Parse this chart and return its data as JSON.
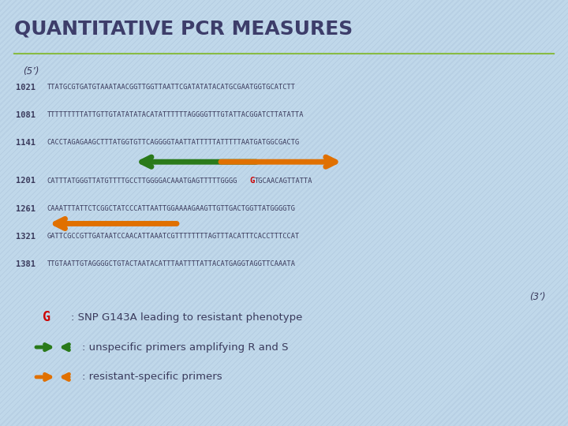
{
  "title": "QUANTITATIVE PCR MEASURES",
  "title_color": "#3d3d6a",
  "bg_color": "#b8cfe0",
  "bg_color2": "#d0e4f0",
  "five_prime_label": "(5’)",
  "three_prime_label": "(3’)",
  "seq_lines": [
    {
      "pos": "1021",
      "seq": "TTATGCGTGATGTAAATAACGGTTGGTTAATTCGATATATACATGCGAATGGTGCATCTT"
    },
    {
      "pos": "1081",
      "seq": "TTTTTTTTTATTGTTGTATATATACATATTTTTTAGGGGTTTGTATTACGGATCTTATATTA"
    },
    {
      "pos": "1141",
      "seq": "CACCTAGAGAAGCTTTATGGTGTTCAGGGGTAATTATTTTTATTTTTAATGATGGCGACTG"
    },
    {
      "pos": "1201",
      "seq": "CATTTATGGGTTATGTTTTGCCTTGGGGACAAATGAGTTTTTGGGG",
      "snp": "G",
      "seq_after": "TGCAACAGTTATTA"
    },
    {
      "pos": "1261",
      "seq": "CAAATTTATTCTCGGCTATCCCATTAATTGGAAAAGAAGTTGTTGACTGGTTATGGGGTG"
    },
    {
      "pos": "1321",
      "seq": "GATTCGCCGTTGATAATCCAACATTAAATCGTTTTTTTTAGTTTACATTTCACCTTTCCAT"
    },
    {
      "pos": "1381",
      "seq": "TTGTAATTGTAGGGGCTGTACTAATACATTTAATTTTATTACATGAGGTAGGTTCAAATA"
    }
  ],
  "seq_color": "#3a3a5c",
  "pos_color": "#3a3a5c",
  "snp_color": "#cc0000",
  "green_color": "#2a7a1a",
  "orange_color": "#e07000",
  "separator_color": "#88bb44"
}
